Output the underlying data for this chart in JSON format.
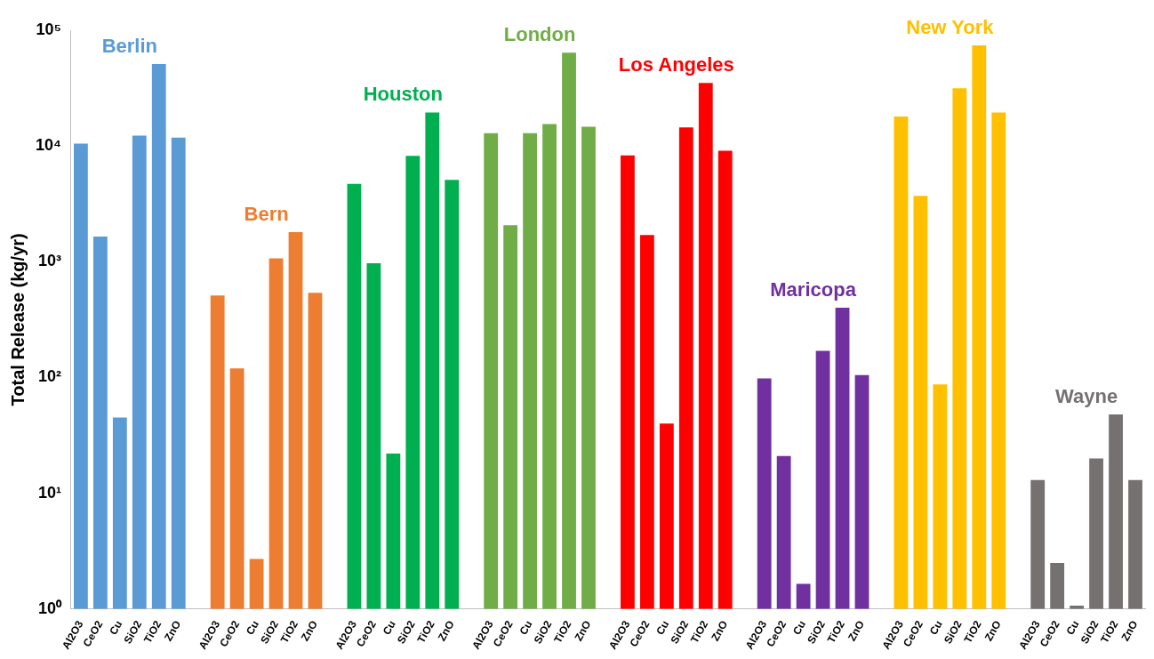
{
  "chart_data": {
    "type": "bar",
    "ylabel": "Total Release (kg/yr)",
    "log": true,
    "grid": false,
    "legend": false,
    "categories": [
      "Al2O3",
      "CeO2",
      "Cu",
      "SiO2",
      "TiO2",
      "ZnO",
      null,
      "Al2O3",
      "CeO2",
      "Cu",
      "SiO2",
      "TiO2",
      "ZnO",
      null,
      "Al2O3",
      "CeO2",
      "Cu",
      "SiO2",
      "TiO2",
      "ZnO",
      null,
      "Al2O3",
      "CeO2",
      "Cu",
      "SiO2",
      "TiO2",
      "ZnO",
      null,
      "Al2O3",
      "CeO2",
      "Cu",
      "SiO2",
      "TiO2",
      "ZnO",
      null,
      "Al2O3",
      "CeO2",
      "Cu",
      "SiO2",
      "TiO2",
      "ZnO",
      null,
      "Al2O3",
      "CeO2",
      "Cu",
      "SiO2",
      "TiO2",
      "ZnO",
      null,
      "Al2O3",
      "CeO2",
      "Cu",
      "SiO2",
      "TiO2",
      "ZnO"
    ],
    "ylim": [
      1,
      100000
    ],
    "yticks": [
      {
        "value": 1,
        "label": "10⁰"
      },
      {
        "value": 10,
        "label": "10¹"
      },
      {
        "value": 100,
        "label": "10²"
      },
      {
        "value": 1000,
        "label": "10³"
      },
      {
        "value": 10000,
        "label": "10⁴"
      },
      {
        "value": 100000,
        "label": "10⁵"
      }
    ],
    "series": [
      {
        "name": "Berlin",
        "color": "#5b9bd5",
        "values": [
          10500,
          1650,
          45,
          12300,
          51000,
          11800,
          null,
          null,
          null,
          null,
          null,
          null,
          null,
          null,
          null,
          null,
          null,
          null,
          null,
          null,
          null,
          null,
          null,
          null,
          null,
          null,
          null,
          null,
          null,
          null,
          null,
          null,
          null,
          null,
          null,
          null,
          null,
          null,
          null,
          null,
          null,
          null,
          null,
          null,
          null,
          null,
          null,
          null,
          null,
          null,
          null,
          null,
          null,
          null,
          null
        ]
      },
      {
        "name": "Bern",
        "color": "#ed7d31",
        "values": [
          null,
          null,
          null,
          null,
          null,
          null,
          null,
          510,
          120,
          2.7,
          1070,
          1800,
          540,
          null,
          null,
          null,
          null,
          null,
          null,
          null,
          null,
          null,
          null,
          null,
          null,
          null,
          null,
          null,
          null,
          null,
          null,
          null,
          null,
          null,
          null,
          null,
          null,
          null,
          null,
          null,
          null,
          null,
          null,
          null,
          null,
          null,
          null,
          null,
          null,
          null,
          null,
          null,
          null,
          null,
          null
        ]
      },
      {
        "name": "Houston",
        "color": "#00b050",
        "values": [
          null,
          null,
          null,
          null,
          null,
          null,
          null,
          null,
          null,
          null,
          null,
          null,
          null,
          null,
          4700,
          970,
          22,
          8200,
          19500,
          5100,
          null,
          null,
          null,
          null,
          null,
          null,
          null,
          null,
          null,
          null,
          null,
          null,
          null,
          null,
          null,
          null,
          null,
          null,
          null,
          null,
          null,
          null,
          null,
          null,
          null,
          null,
          null,
          null,
          null,
          null,
          null,
          null,
          null,
          null,
          null
        ]
      },
      {
        "name": "London",
        "color": "#70ad47",
        "values": [
          null,
          null,
          null,
          null,
          null,
          null,
          null,
          null,
          null,
          null,
          null,
          null,
          null,
          null,
          null,
          null,
          null,
          null,
          null,
          null,
          null,
          12900,
          2070,
          12900,
          15500,
          64000,
          14700,
          null,
          null,
          null,
          null,
          null,
          null,
          null,
          null,
          null,
          null,
          null,
          null,
          null,
          null,
          null,
          null,
          null,
          null,
          null,
          null,
          null,
          null,
          null,
          null,
          null,
          null,
          null,
          null
        ]
      },
      {
        "name": "Los Angeles",
        "color": "#ff0000",
        "values": [
          null,
          null,
          null,
          null,
          null,
          null,
          null,
          null,
          null,
          null,
          null,
          null,
          null,
          null,
          null,
          null,
          null,
          null,
          null,
          null,
          null,
          null,
          null,
          null,
          null,
          null,
          null,
          null,
          8300,
          1700,
          40,
          14500,
          35000,
          9100,
          null,
          null,
          null,
          null,
          null,
          null,
          null,
          null,
          null,
          null,
          null,
          null,
          null,
          null,
          null,
          null,
          null,
          null,
          null,
          null,
          null
        ]
      },
      {
        "name": "Maricopa",
        "color": "#7030a0",
        "values": [
          null,
          null,
          null,
          null,
          null,
          null,
          null,
          null,
          null,
          null,
          null,
          null,
          null,
          null,
          null,
          null,
          null,
          null,
          null,
          null,
          null,
          null,
          null,
          null,
          null,
          null,
          null,
          null,
          null,
          null,
          null,
          null,
          null,
          null,
          null,
          98,
          21,
          1.65,
          170,
          400,
          105,
          null,
          null,
          null,
          null,
          null,
          null,
          null,
          null,
          null,
          null,
          null,
          null,
          null,
          null
        ]
      },
      {
        "name": "New York",
        "color": "#ffc000",
        "values": [
          null,
          null,
          null,
          null,
          null,
          null,
          null,
          null,
          null,
          null,
          null,
          null,
          null,
          null,
          null,
          null,
          null,
          null,
          null,
          null,
          null,
          null,
          null,
          null,
          null,
          null,
          null,
          null,
          null,
          null,
          null,
          null,
          null,
          null,
          null,
          null,
          null,
          null,
          null,
          null,
          null,
          null,
          18000,
          3700,
          87,
          31500,
          74000,
          19500,
          null,
          null,
          null,
          null,
          null,
          null,
          null
        ]
      },
      {
        "name": "Wayne",
        "color": "#767171",
        "values": [
          null,
          null,
          null,
          null,
          null,
          null,
          null,
          null,
          null,
          null,
          null,
          null,
          null,
          null,
          null,
          null,
          null,
          null,
          null,
          null,
          null,
          null,
          null,
          null,
          null,
          null,
          null,
          null,
          null,
          null,
          null,
          null,
          null,
          null,
          null,
          null,
          null,
          null,
          null,
          null,
          null,
          null,
          null,
          null,
          null,
          null,
          null,
          null,
          null,
          13,
          2.5,
          1.07,
          20,
          48,
          13
        ]
      }
    ]
  }
}
